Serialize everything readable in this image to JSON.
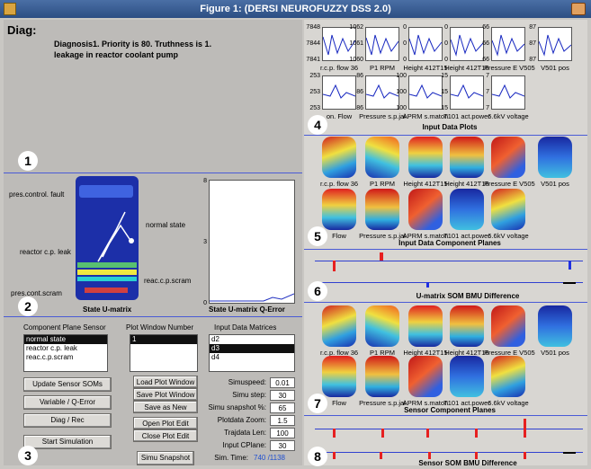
{
  "window": {
    "title": "Figure 1: (DERSI NEUROFUZZY DSS 2.0)"
  },
  "diag": {
    "label": "Diag:",
    "line1": "Diagnosis1. Priority is 80. Truthness is 1.",
    "line2": "leakage in reactor coolant pump"
  },
  "badges": [
    "1",
    "2",
    "3",
    "4",
    "5",
    "6",
    "7",
    "8"
  ],
  "umatrix": {
    "title": "State U-matrix",
    "annotations": [
      "pres.control. fault",
      "normal state",
      "reactor c.p. leak",
      "reac.c.p.scram",
      "pres.cont.scram"
    ]
  },
  "qerror": {
    "title": "State U-matrix Q-Error",
    "yticks": [
      "8",
      "3",
      "0"
    ]
  },
  "controls": {
    "component_plane_sensor": {
      "header": "Component Plane Sensor",
      "items": [
        "normal state",
        "reactor c.p. leak",
        "reac.c.p.scram"
      ]
    },
    "plot_window_number": {
      "header": "Plot Window Number",
      "items": [
        "1"
      ]
    },
    "input_data_matrices": {
      "header": "Input Data Matrices",
      "items": [
        "d2",
        "d3",
        "d4"
      ]
    },
    "buttons": {
      "update": "Update Sensor SOMs",
      "variable": "Variable / Q-Error",
      "diag": "Diag / Rec",
      "start": "Start Simulation",
      "load": "Load Plot Window",
      "save": "Save Plot Window",
      "saveas": "Save as New",
      "open": "Open Plot Edit",
      "close": "Close Plot Edit",
      "snapshot": "Simu Snapshot"
    },
    "params": [
      {
        "label": "Simuspeed:",
        "value": "0.01"
      },
      {
        "label": "Simu step:",
        "value": "30"
      },
      {
        "label": "Simu snapshot %:",
        "value": "65"
      },
      {
        "label": "Plotdata Zoom:",
        "value": "1.5"
      },
      {
        "label": "Trajdata Len:",
        "value": "100"
      },
      {
        "label": "Input CPlane:",
        "value": "30"
      }
    ],
    "simtime": {
      "label": "Sim. Time:",
      "value": "740 /1138"
    }
  },
  "input_plots": {
    "title": "Input Data Plots",
    "row1": [
      {
        "name": "r.c.p. flow 36",
        "ytop": "7848",
        "ymid": "7844",
        "ybot": "7841"
      },
      {
        "name": "P1 RPM",
        "ytop": "1062",
        "ymid": "1061",
        "ybot": "1060"
      },
      {
        "name": "Height 412T15",
        "ytop": "0",
        "ymid": "0",
        "ybot": "0"
      },
      {
        "name": "Height 412T16",
        "ytop": "0",
        "ymid": "0",
        "ybot": "0"
      },
      {
        "name": "Pressure E V505",
        "ytop": "66",
        "ymid": "66",
        "ybot": "66"
      },
      {
        "name": "V501 pos",
        "ytop": "87",
        "ymid": "87",
        "ybot": "87"
      }
    ],
    "row2": [
      {
        "name": "on. Flow",
        "ytop": "253",
        "ymid": "253",
        "ybot": "253"
      },
      {
        "name": "Pressure s.p.jal",
        "ytop": "86",
        "ymid": "86",
        "ybot": "86"
      },
      {
        "name": "APRM s.maton",
        "ytop": "100",
        "ymid": "100",
        "ybot": "100"
      },
      {
        "name": "T101 act.power",
        "ytop": "15",
        "ymid": "15",
        "ybot": "15"
      },
      {
        "name": "6.6kV voltage",
        "ytop": "7",
        "ymid": "7",
        "ybot": "7"
      }
    ]
  },
  "input_planes": {
    "title": "Input Data Component Planes",
    "labels": [
      "r.c.p. flow 36",
      "P1 RPM",
      "Height 412T15",
      "Height 412T16",
      "Pressure E V505",
      "V501 pos",
      "Flow",
      "Pressure s.p.jal",
      "APRM s.maton",
      "T101 act.power",
      "6.6kV voltage"
    ]
  },
  "umatrix_bmu": {
    "title": "U-matrix SOM BMU Difference"
  },
  "sensor_planes": {
    "title": "Sensor Component Planes",
    "labels": [
      "r.c.p. flow 36",
      "P1 RPM",
      "Height 412T15",
      "Height 412T16",
      "Pressure E V505",
      "V501 pos",
      "Flow",
      "Pressure s.p.jal",
      "APRM s.maton",
      "T101 act.power",
      "6.6kV voltage"
    ]
  },
  "sensor_bmu": {
    "title": "Sensor SOM BMU Difference"
  }
}
